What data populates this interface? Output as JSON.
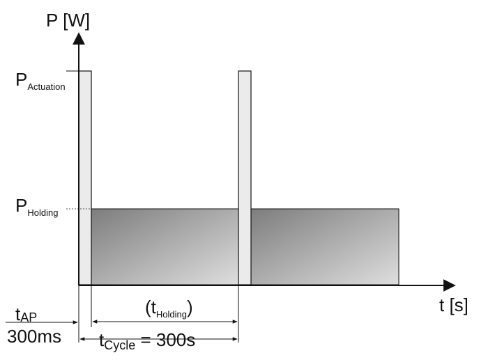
{
  "axes": {
    "y_label": "P [W]",
    "x_label": "t [s]"
  },
  "levels": {
    "actuation": {
      "main": "P",
      "sub": "Actuation"
    },
    "holding": {
      "main": "P",
      "sub": "Holding"
    }
  },
  "annotations": {
    "t_ap": {
      "main": "t",
      "sub": "AP",
      "value": "300ms"
    },
    "t_holding": {
      "open": "(t",
      "sub": "Holding",
      "close": ")"
    },
    "t_cycle": {
      "main": "t",
      "sub": "Cycle",
      "rest": " = 300s"
    }
  },
  "colors": {
    "pulse_fill": "#ebebeb",
    "holding_dark": "#7d7d7d",
    "holding_light": "#dcdcdc",
    "line": "#111111"
  }
}
